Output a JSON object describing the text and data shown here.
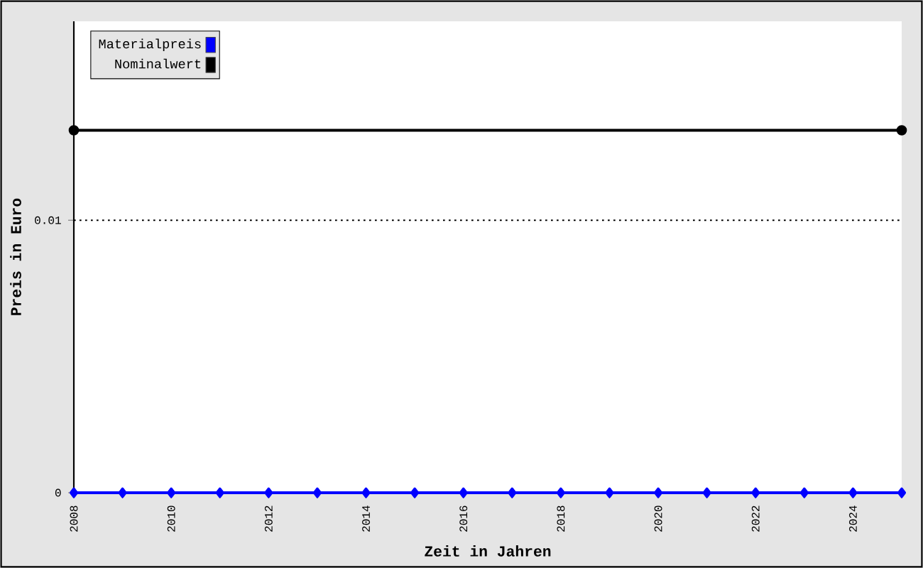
{
  "chart_data": {
    "type": "line",
    "xlabel": "Zeit in Jahren",
    "ylabel": "Preis in Euro",
    "x": [
      2008,
      2009,
      2010,
      2011,
      2012,
      2013,
      2014,
      2015,
      2016,
      2017,
      2018,
      2019,
      2020,
      2021,
      2022,
      2023,
      2024,
      2025
    ],
    "series": [
      {
        "name": "Materialpreis",
        "color": "#0000ff",
        "marker": "diamond",
        "values": [
          0,
          0,
          0,
          0,
          0,
          0,
          0,
          0,
          0,
          0,
          0,
          0,
          0,
          0,
          0,
          0,
          0,
          0
        ]
      },
      {
        "name": "Nominalwert",
        "color": "#000000",
        "marker": "circle",
        "x": [
          2008,
          2025
        ],
        "values": [
          0.0133,
          0.0133
        ]
      }
    ],
    "xlim": [
      2008,
      2025
    ],
    "ylim": [
      0,
      0.0173
    ],
    "xticks": [
      2008,
      {
        "value": 2009,
        "label": null
      },
      2010,
      {
        "value": 2011,
        "label": null
      },
      2012,
      {
        "value": 2013,
        "label": null
      },
      2014,
      {
        "value": 2015,
        "label": null
      },
      2016,
      {
        "value": 2017,
        "label": null
      },
      2018,
      {
        "value": 2019,
        "label": null
      },
      2020,
      {
        "value": 2021,
        "label": null
      },
      2022,
      {
        "value": 2023,
        "label": null
      },
      2024,
      {
        "value": 2025,
        "label": null
      }
    ],
    "yticks": [
      0,
      0.01
    ],
    "ref_lines": [
      {
        "axis": "y",
        "value": 0.01,
        "color": "#000000",
        "line_style": "dotted"
      }
    ],
    "legend": "top left"
  }
}
